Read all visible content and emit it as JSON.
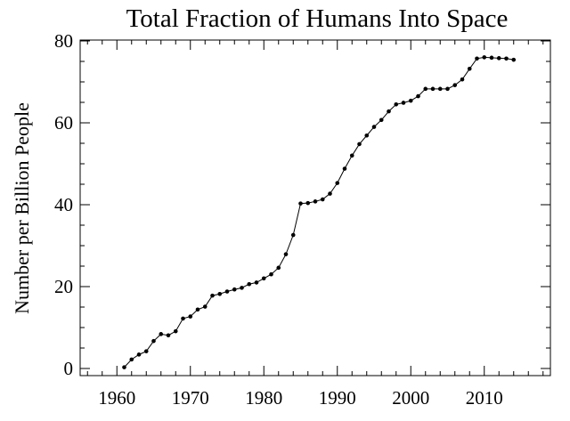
{
  "chart_data": {
    "type": "line",
    "title": "Total Fraction of Humans Into Space",
    "xlabel": "",
    "ylabel": "Number per Billion People",
    "xlim": [
      1955,
      2019
    ],
    "ylim": [
      0,
      80
    ],
    "x_ticks": [
      1960,
      1970,
      1980,
      1990,
      2000,
      2010
    ],
    "y_ticks": [
      0,
      20,
      40,
      60,
      80
    ],
    "grid": false,
    "legend": "none",
    "line_color": "#000000",
    "marker": "circle",
    "x": [
      1961,
      1962,
      1963,
      1964,
      1965,
      1966,
      1967,
      1968,
      1969,
      1970,
      1971,
      1972,
      1973,
      1974,
      1975,
      1976,
      1977,
      1978,
      1979,
      1980,
      1981,
      1982,
      1983,
      1984,
      1985,
      1986,
      1987,
      1988,
      1989,
      1990,
      1991,
      1992,
      1993,
      1994,
      1995,
      1996,
      1997,
      1998,
      1999,
      2000,
      2001,
      2002,
      2003,
      2004,
      2005,
      2006,
      2007,
      2008,
      2009,
      2010,
      2011,
      2012,
      2013,
      2014
    ],
    "y": [
      0.3,
      2.2,
      3.4,
      4.2,
      6.7,
      8.4,
      8.1,
      9.1,
      12.2,
      12.7,
      14.4,
      15.1,
      17.8,
      18.2,
      18.8,
      19.3,
      19.7,
      20.6,
      21.0,
      22.0,
      23.0,
      24.6,
      27.9,
      32.6,
      40.3,
      40.4,
      40.8,
      41.3,
      42.7,
      45.3,
      48.8,
      52.0,
      54.8,
      56.9,
      59.0,
      60.7,
      62.8,
      64.5,
      64.9,
      65.4,
      66.5,
      68.3,
      68.3,
      68.3,
      68.3,
      69.2,
      70.6,
      73.2,
      75.7,
      76.0,
      75.9,
      75.8,
      75.7,
      75.4
    ]
  }
}
